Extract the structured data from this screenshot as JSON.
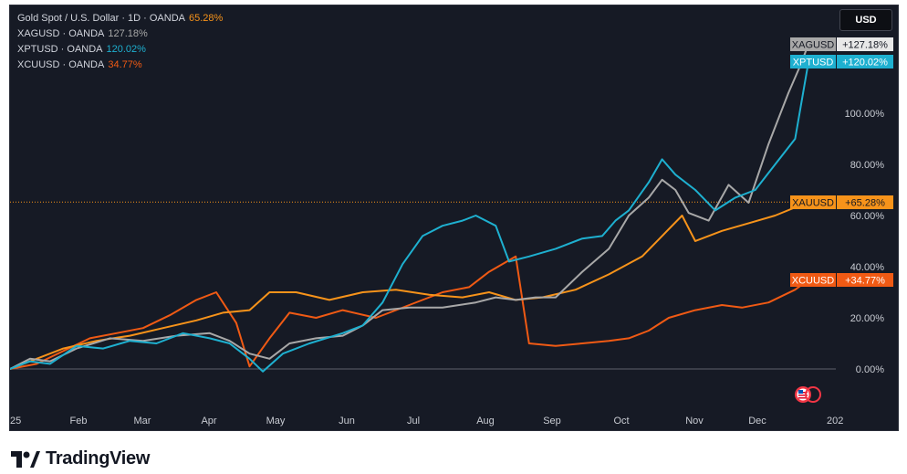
{
  "legend": [
    {
      "name": "Gold Spot / U.S. Dollar · 1D · OANDA",
      "value": "65.28%",
      "color": "#f7931a"
    },
    {
      "name": "XAGUSD · OANDA",
      "value": "127.18%",
      "color": "#a8a8a8"
    },
    {
      "name": "XPTUSD · OANDA",
      "value": "120.02%",
      "color": "#1eb0d0"
    },
    {
      "name": "XCUUSD · OANDA",
      "value": "34.77%",
      "color": "#f05a14"
    }
  ],
  "currency_button": "USD",
  "brand": {
    "name": "TradingView"
  },
  "chart_data": {
    "type": "line",
    "title": "Gold Spot / U.S. Dollar · 1D · OANDA",
    "xlabel": "",
    "ylabel": "",
    "x_ticks": [
      "25",
      "Feb",
      "Mar",
      "Apr",
      "May",
      "Jun",
      "Jul",
      "Aug",
      "Sep",
      "Oct",
      "Nov",
      "Dec",
      "202"
    ],
    "y_ticks": [
      "100.00%",
      "80.00%",
      "60.00%",
      "40.00%",
      "20.00%",
      "0.00%"
    ],
    "y_tick_values": [
      100,
      80,
      60,
      40,
      20,
      0
    ],
    "ylim": [
      -18,
      142
    ],
    "x_range": [
      0,
      12.1
    ],
    "grid": false,
    "series": [
      {
        "name": "XAGUSD",
        "label": "XAGUSD",
        "last": "+127.18%",
        "color": "#a8a8a8",
        "text_color": "#131722",
        "points": [
          [
            0,
            0
          ],
          [
            0.3,
            4
          ],
          [
            0.6,
            3
          ],
          [
            1,
            8
          ],
          [
            1.5,
            12
          ],
          [
            2,
            11
          ],
          [
            2.5,
            13
          ],
          [
            3,
            14
          ],
          [
            3.3,
            11
          ],
          [
            3.6,
            6
          ],
          [
            3.9,
            4
          ],
          [
            4.2,
            10
          ],
          [
            4.6,
            12
          ],
          [
            5,
            13
          ],
          [
            5.3,
            17
          ],
          [
            5.6,
            23
          ],
          [
            6,
            24
          ],
          [
            6.5,
            24
          ],
          [
            7,
            26
          ],
          [
            7.3,
            28
          ],
          [
            7.6,
            27
          ],
          [
            7.9,
            28
          ],
          [
            8.2,
            28
          ],
          [
            8.6,
            38
          ],
          [
            9,
            47
          ],
          [
            9.3,
            60
          ],
          [
            9.6,
            67
          ],
          [
            9.8,
            74
          ],
          [
            10,
            70
          ],
          [
            10.2,
            61
          ],
          [
            10.5,
            58
          ],
          [
            10.8,
            72
          ],
          [
            11.1,
            65
          ],
          [
            11.4,
            88
          ],
          [
            11.7,
            108
          ],
          [
            11.9,
            120
          ],
          [
            12,
            127.18
          ]
        ]
      },
      {
        "name": "XPTUSD",
        "label": "XPTUSD",
        "last": "+120.02%",
        "color": "#1eb0d0",
        "text_color": "#ffffff",
        "points": [
          [
            0,
            0
          ],
          [
            0.3,
            3
          ],
          [
            0.6,
            2
          ],
          [
            1,
            9
          ],
          [
            1.4,
            8
          ],
          [
            1.8,
            11
          ],
          [
            2.2,
            10
          ],
          [
            2.6,
            14
          ],
          [
            3,
            12
          ],
          [
            3.3,
            10
          ],
          [
            3.6,
            4
          ],
          [
            3.8,
            -1
          ],
          [
            4.1,
            6
          ],
          [
            4.5,
            10
          ],
          [
            5,
            14
          ],
          [
            5.3,
            17
          ],
          [
            5.6,
            26
          ],
          [
            5.9,
            41
          ],
          [
            6.2,
            52
          ],
          [
            6.5,
            56
          ],
          [
            6.8,
            58
          ],
          [
            7,
            60
          ],
          [
            7.3,
            56
          ],
          [
            7.5,
            42
          ],
          [
            7.8,
            44
          ],
          [
            8.2,
            47
          ],
          [
            8.6,
            51
          ],
          [
            8.9,
            52
          ],
          [
            9.1,
            58
          ],
          [
            9.3,
            62
          ],
          [
            9.6,
            73
          ],
          [
            9.8,
            82
          ],
          [
            10,
            76
          ],
          [
            10.3,
            70
          ],
          [
            10.6,
            62
          ],
          [
            10.9,
            67
          ],
          [
            11.2,
            70
          ],
          [
            11.5,
            80
          ],
          [
            11.8,
            90
          ],
          [
            12,
            120.02
          ]
        ]
      },
      {
        "name": "XAUUSD",
        "label": "XAUUSD",
        "last": "+65.28%",
        "color": "#f7931a",
        "text_color": "#131722",
        "points": [
          [
            0,
            0
          ],
          [
            0.4,
            4
          ],
          [
            0.8,
            8
          ],
          [
            1.3,
            11
          ],
          [
            1.8,
            13
          ],
          [
            2.3,
            16
          ],
          [
            2.8,
            19
          ],
          [
            3.2,
            22
          ],
          [
            3.6,
            23
          ],
          [
            3.9,
            30
          ],
          [
            4.3,
            30
          ],
          [
            4.8,
            27
          ],
          [
            5.3,
            30
          ],
          [
            5.8,
            31
          ],
          [
            6.3,
            29
          ],
          [
            6.8,
            28
          ],
          [
            7.2,
            30
          ],
          [
            7.6,
            27
          ],
          [
            8,
            28
          ],
          [
            8.5,
            31
          ],
          [
            9,
            37
          ],
          [
            9.5,
            44
          ],
          [
            9.8,
            52
          ],
          [
            10.1,
            60
          ],
          [
            10.3,
            50
          ],
          [
            10.7,
            54
          ],
          [
            11.1,
            57
          ],
          [
            11.5,
            60
          ],
          [
            12,
            65.28
          ]
        ]
      },
      {
        "name": "XCUUSD",
        "label": "XCUUSD",
        "last": "+34.77%",
        "color": "#f05a14",
        "text_color": "#ffffff",
        "points": [
          [
            0,
            0
          ],
          [
            0.4,
            2
          ],
          [
            0.8,
            7
          ],
          [
            1.2,
            12
          ],
          [
            1.6,
            14
          ],
          [
            2,
            16
          ],
          [
            2.4,
            21
          ],
          [
            2.8,
            27
          ],
          [
            3.1,
            30
          ],
          [
            3.4,
            18
          ],
          [
            3.6,
            1
          ],
          [
            3.9,
            12
          ],
          [
            4.2,
            22
          ],
          [
            4.6,
            20
          ],
          [
            5,
            23
          ],
          [
            5.5,
            20
          ],
          [
            6,
            25
          ],
          [
            6.5,
            30
          ],
          [
            6.9,
            32
          ],
          [
            7.2,
            38
          ],
          [
            7.6,
            44
          ],
          [
            7.8,
            10
          ],
          [
            8.2,
            9
          ],
          [
            8.6,
            10
          ],
          [
            9,
            11
          ],
          [
            9.3,
            12
          ],
          [
            9.6,
            15
          ],
          [
            9.9,
            20
          ],
          [
            10.3,
            23
          ],
          [
            10.7,
            25
          ],
          [
            11,
            24
          ],
          [
            11.4,
            26
          ],
          [
            11.8,
            31
          ],
          [
            12,
            34.77
          ]
        ]
      }
    ]
  }
}
